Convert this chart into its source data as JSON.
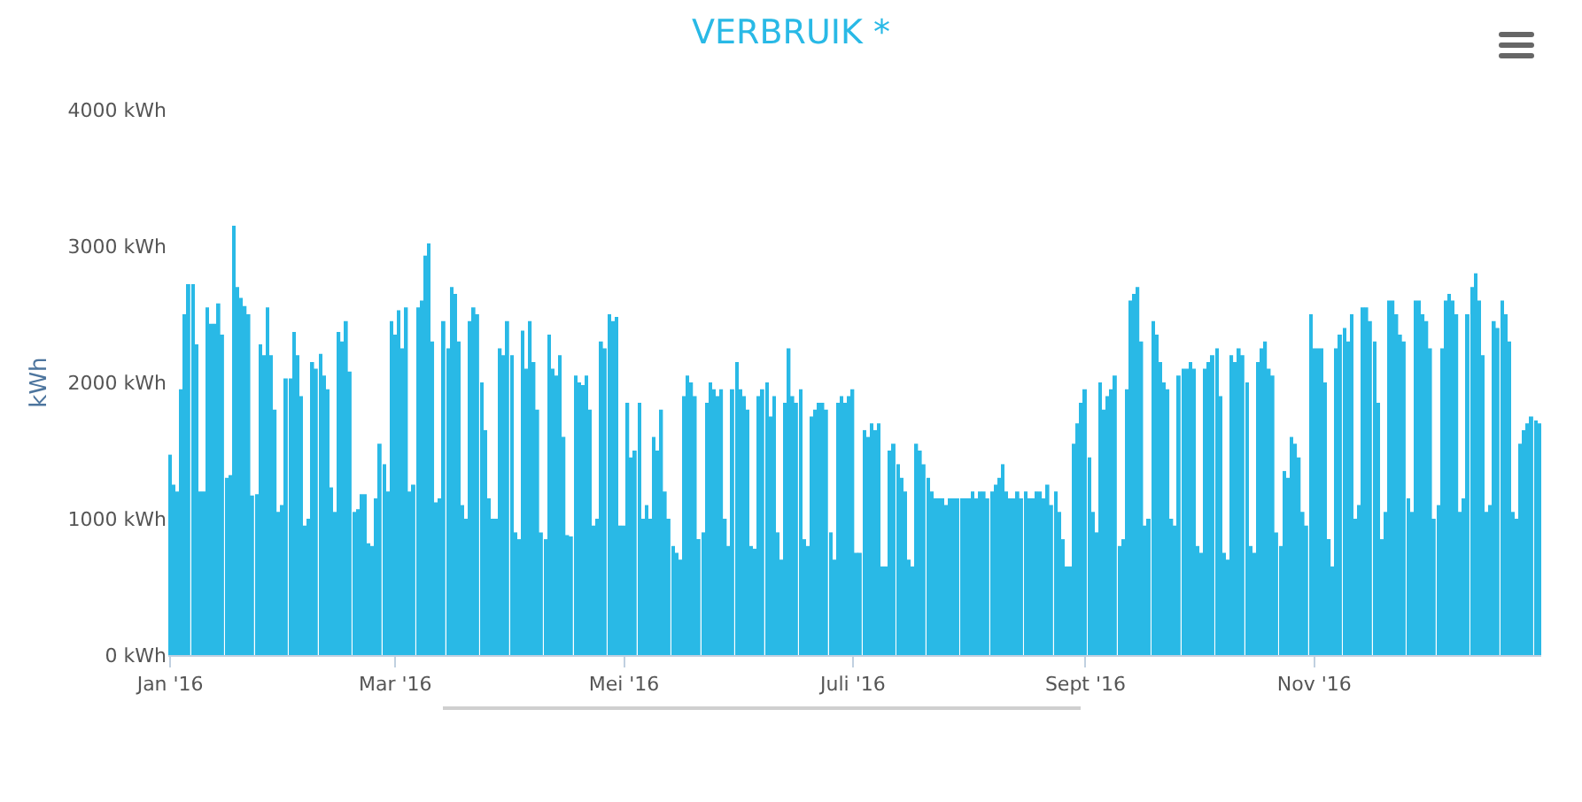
{
  "chart_data": {
    "type": "bar",
    "title": "VERBRUIK *",
    "ylabel": "kWh",
    "x": [
      "2016-01-01",
      "2016-01-02",
      "2016-01-03",
      "2016-01-04",
      "2016-01-05",
      "2016-01-06",
      "2016-01-07",
      "2016-01-08",
      "2016-01-09",
      "2016-01-10",
      "2016-01-11",
      "2016-01-12",
      "2016-01-13",
      "2016-01-14",
      "2016-01-15",
      "2016-01-16",
      "2016-01-17",
      "2016-01-18",
      "2016-01-19",
      "2016-01-20",
      "2016-01-21",
      "2016-01-22",
      "2016-01-23",
      "2016-01-24",
      "2016-01-25",
      "2016-01-26",
      "2016-01-27",
      "2016-01-28",
      "2016-01-29",
      "2016-01-30",
      "2016-01-31",
      "2016-02-01",
      "2016-02-02",
      "2016-02-03",
      "2016-02-04",
      "2016-02-05",
      "2016-02-06",
      "2016-02-07",
      "2016-02-08",
      "2016-02-09",
      "2016-02-10",
      "2016-02-11",
      "2016-02-12",
      "2016-02-13",
      "2016-02-14",
      "2016-02-15",
      "2016-02-16",
      "2016-02-17",
      "2016-02-18",
      "2016-02-19",
      "2016-02-20",
      "2016-02-21",
      "2016-02-22",
      "2016-02-23",
      "2016-02-24",
      "2016-02-25",
      "2016-02-26",
      "2016-02-27",
      "2016-02-28",
      "2016-02-29",
      "2016-03-01",
      "2016-03-02",
      "2016-03-03",
      "2016-03-04",
      "2016-03-05",
      "2016-03-06",
      "2016-03-07",
      "2016-03-08",
      "2016-03-09",
      "2016-03-10",
      "2016-03-11",
      "2016-03-12",
      "2016-03-13",
      "2016-03-14",
      "2016-03-15",
      "2016-03-16",
      "2016-03-17",
      "2016-03-18",
      "2016-03-19",
      "2016-03-20",
      "2016-03-21",
      "2016-03-22",
      "2016-03-23",
      "2016-03-24",
      "2016-03-25",
      "2016-03-26",
      "2016-03-27",
      "2016-03-28",
      "2016-03-29",
      "2016-03-30",
      "2016-03-31",
      "2016-04-01",
      "2016-04-02",
      "2016-04-03",
      "2016-04-04",
      "2016-04-05",
      "2016-04-06",
      "2016-04-07",
      "2016-04-08",
      "2016-04-09",
      "2016-04-10",
      "2016-04-11",
      "2016-04-12",
      "2016-04-13",
      "2016-04-14",
      "2016-04-15",
      "2016-04-16",
      "2016-04-17",
      "2016-04-18",
      "2016-04-19",
      "2016-04-20",
      "2016-04-21",
      "2016-04-22",
      "2016-04-23",
      "2016-04-24",
      "2016-04-25",
      "2016-04-26",
      "2016-04-27",
      "2016-04-28",
      "2016-04-29",
      "2016-04-30",
      "2016-05-01",
      "2016-05-02",
      "2016-05-03",
      "2016-05-04",
      "2016-05-05",
      "2016-05-06",
      "2016-05-07",
      "2016-05-08",
      "2016-05-09",
      "2016-05-10",
      "2016-05-11",
      "2016-05-12",
      "2016-05-13",
      "2016-05-14",
      "2016-05-15",
      "2016-05-16",
      "2016-05-17",
      "2016-05-18",
      "2016-05-19",
      "2016-05-20",
      "2016-05-21",
      "2016-05-22",
      "2016-05-23",
      "2016-05-24",
      "2016-05-25",
      "2016-05-26",
      "2016-05-27",
      "2016-05-28",
      "2016-05-29",
      "2016-05-30",
      "2016-05-31",
      "2016-06-01",
      "2016-06-02",
      "2016-06-03",
      "2016-06-04",
      "2016-06-05",
      "2016-06-06",
      "2016-06-07",
      "2016-06-08",
      "2016-06-09",
      "2016-06-10",
      "2016-06-11",
      "2016-06-12",
      "2016-06-13",
      "2016-06-14",
      "2016-06-15",
      "2016-06-16",
      "2016-06-17",
      "2016-06-18",
      "2016-06-19",
      "2016-06-20",
      "2016-06-21",
      "2016-06-22",
      "2016-06-23",
      "2016-06-24",
      "2016-06-25",
      "2016-06-26",
      "2016-06-27",
      "2016-06-28",
      "2016-06-29",
      "2016-06-30",
      "2016-07-01",
      "2016-07-02",
      "2016-07-03",
      "2016-07-04",
      "2016-07-05",
      "2016-07-06",
      "2016-07-07",
      "2016-07-08",
      "2016-07-09",
      "2016-07-10",
      "2016-07-11",
      "2016-07-12",
      "2016-07-13",
      "2016-07-14",
      "2016-07-15",
      "2016-07-16",
      "2016-07-17",
      "2016-07-18",
      "2016-07-19",
      "2016-07-20",
      "2016-07-21",
      "2016-07-22",
      "2016-07-23",
      "2016-07-24",
      "2016-07-25",
      "2016-07-26",
      "2016-07-27",
      "2016-07-28",
      "2016-07-29",
      "2016-07-30",
      "2016-07-31",
      "2016-08-01",
      "2016-08-02",
      "2016-08-03",
      "2016-08-04",
      "2016-08-05",
      "2016-08-06",
      "2016-08-07",
      "2016-08-08",
      "2016-08-09",
      "2016-08-10",
      "2016-08-11",
      "2016-08-12",
      "2016-08-13",
      "2016-08-14",
      "2016-08-15",
      "2016-08-16",
      "2016-08-17",
      "2016-08-18",
      "2016-08-19",
      "2016-08-20",
      "2016-08-21",
      "2016-08-22",
      "2016-08-23",
      "2016-08-24",
      "2016-08-25",
      "2016-08-26",
      "2016-08-27",
      "2016-08-28",
      "2016-08-29",
      "2016-08-30",
      "2016-08-31",
      "2016-09-01",
      "2016-09-02",
      "2016-09-03",
      "2016-09-04",
      "2016-09-05",
      "2016-09-06",
      "2016-09-07",
      "2016-09-08",
      "2016-09-09",
      "2016-09-10",
      "2016-09-11",
      "2016-09-12",
      "2016-09-13",
      "2016-09-14",
      "2016-09-15",
      "2016-09-16",
      "2016-09-17",
      "2016-09-18",
      "2016-09-19",
      "2016-09-20",
      "2016-09-21",
      "2016-09-22",
      "2016-09-23",
      "2016-09-24",
      "2016-09-25",
      "2016-09-26",
      "2016-09-27",
      "2016-09-28",
      "2016-09-29",
      "2016-09-30",
      "2016-10-01",
      "2016-10-02",
      "2016-10-03",
      "2016-10-04",
      "2016-10-05",
      "2016-10-06",
      "2016-10-07",
      "2016-10-08",
      "2016-10-09",
      "2016-10-10",
      "2016-10-11",
      "2016-10-12",
      "2016-10-13",
      "2016-10-14",
      "2016-10-15",
      "2016-10-16",
      "2016-10-17",
      "2016-10-18",
      "2016-10-19",
      "2016-10-20",
      "2016-10-21",
      "2016-10-22",
      "2016-10-23",
      "2016-10-24",
      "2016-10-25",
      "2016-10-26",
      "2016-10-27",
      "2016-10-28",
      "2016-10-29",
      "2016-10-30",
      "2016-10-31",
      "2016-11-01",
      "2016-11-02",
      "2016-11-03",
      "2016-11-04",
      "2016-11-05",
      "2016-11-06",
      "2016-11-07",
      "2016-11-08",
      "2016-11-09",
      "2016-11-10",
      "2016-11-11",
      "2016-11-12",
      "2016-11-13",
      "2016-11-14",
      "2016-11-15",
      "2016-11-16",
      "2016-11-17",
      "2016-11-18",
      "2016-11-19",
      "2016-11-20",
      "2016-11-21",
      "2016-11-22",
      "2016-11-23",
      "2016-11-24",
      "2016-11-25",
      "2016-11-26",
      "2016-11-27",
      "2016-11-28",
      "2016-11-29",
      "2016-11-30",
      "2016-12-01",
      "2016-12-02",
      "2016-12-03",
      "2016-12-04",
      "2016-12-05",
      "2016-12-06",
      "2016-12-07",
      "2016-12-08",
      "2016-12-09",
      "2016-12-10",
      "2016-12-11",
      "2016-12-12",
      "2016-12-13",
      "2016-12-14",
      "2016-12-15",
      "2016-12-16",
      "2016-12-17",
      "2016-12-18",
      "2016-12-19",
      "2016-12-20",
      "2016-12-21",
      "2016-12-22",
      "2016-12-23",
      "2016-12-24",
      "2016-12-25",
      "2016-12-26",
      "2016-12-27",
      "2016-12-28",
      "2016-12-29",
      "2016-12-30",
      "2016-12-31"
    ],
    "series": [
      {
        "color": "#29b9e6",
        "values": [
          1470,
          1250,
          1200,
          1950,
          2500,
          2720,
          2720,
          2280,
          1200,
          1200,
          2550,
          2430,
          2430,
          2580,
          2350,
          1300,
          1320,
          3150,
          2700,
          2620,
          2560,
          2500,
          1170,
          1180,
          2280,
          2200,
          2550,
          2200,
          1800,
          1050,
          1100,
          2030,
          2030,
          2370,
          2200,
          1900,
          950,
          1000,
          2150,
          2100,
          2210,
          2050,
          1950,
          1230,
          1050,
          2370,
          2300,
          2450,
          2080,
          1050,
          1070,
          1180,
          1180,
          820,
          800,
          1150,
          1550,
          1400,
          1200,
          2450,
          2350,
          2530,
          2250,
          2550,
          1200,
          1250,
          2550,
          2600,
          2930,
          3020,
          2300,
          1120,
          1150,
          2450,
          2250,
          2700,
          2650,
          2300,
          1100,
          1000,
          2450,
          2550,
          2500,
          2000,
          1650,
          1150,
          1000,
          1000,
          2250,
          2200,
          2450,
          2200,
          900,
          850,
          2380,
          2100,
          2450,
          2150,
          1800,
          900,
          850,
          2350,
          2100,
          2050,
          2200,
          1600,
          880,
          870,
          2050,
          2000,
          1980,
          2050,
          1800,
          950,
          1000,
          2300,
          2250,
          2500,
          2450,
          2480,
          950,
          950,
          1850,
          1450,
          1500,
          1850,
          1000,
          1100,
          1000,
          1600,
          1500,
          1800,
          1200,
          1000,
          800,
          750,
          700,
          1900,
          2050,
          2000,
          1900,
          850,
          900,
          1850,
          2000,
          1950,
          1900,
          1950,
          1000,
          800,
          1950,
          2150,
          1950,
          1900,
          1800,
          800,
          780,
          1900,
          1950,
          2000,
          1750,
          1900,
          900,
          700,
          1850,
          2250,
          1900,
          1850,
          1950,
          850,
          800,
          1750,
          1800,
          1850,
          1850,
          1800,
          900,
          700,
          1850,
          1900,
          1850,
          1900,
          1950,
          750,
          750,
          1650,
          1600,
          1700,
          1650,
          1700,
          650,
          650,
          1500,
          1550,
          1400,
          1300,
          1200,
          700,
          650,
          1550,
          1500,
          1400,
          1300,
          1200,
          1150,
          1150,
          1150,
          1100,
          1150,
          1150,
          1150,
          1150,
          1150,
          1150,
          1200,
          1150,
          1200,
          1200,
          1150,
          1200,
          1250,
          1300,
          1400,
          1200,
          1150,
          1150,
          1200,
          1150,
          1200,
          1150,
          1150,
          1200,
          1200,
          1150,
          1250,
          1100,
          1200,
          1050,
          850,
          650,
          650,
          1550,
          1700,
          1850,
          1950,
          1450,
          1050,
          900,
          2000,
          1800,
          1900,
          1950,
          2050,
          800,
          850,
          1950,
          2600,
          2650,
          2700,
          2300,
          950,
          1000,
          2450,
          2350,
          2150,
          2000,
          1950,
          1000,
          950,
          2050,
          2100,
          2100,
          2150,
          2100,
          800,
          750,
          2100,
          2150,
          2200,
          2250,
          1900,
          750,
          700,
          2200,
          2150,
          2250,
          2200,
          2000,
          800,
          750,
          2150,
          2250,
          2300,
          2100,
          2050,
          900,
          800,
          1350,
          1300,
          1600,
          1550,
          1450,
          1050,
          950,
          2500,
          2250,
          2250,
          2250,
          2000,
          850,
          650,
          2250,
          2350,
          2400,
          2300,
          2500,
          1000,
          1100,
          2550,
          2550,
          2450,
          2300,
          1850,
          850,
          1050,
          2600,
          2600,
          2500,
          2350,
          2300,
          1150,
          1050,
          2600,
          2600,
          2500,
          2450,
          2250,
          1000,
          1100,
          2250,
          2600,
          2650,
          2600,
          2500,
          1050,
          1150,
          2500,
          2700,
          2800,
          2600,
          2200,
          1050,
          1100,
          2450,
          2400,
          2600,
          2500,
          2300,
          1050,
          1000,
          1550,
          1650,
          1700,
          1750,
          1720,
          1700
        ]
      }
    ],
    "xlim": [
      "2015-12-31T12:00",
      "2016-12-31T12:00"
    ],
    "xticks": [
      {
        "value": "2016-01-01",
        "label": "Jan '16"
      },
      {
        "value": "2016-03-01",
        "label": "Mar '16"
      },
      {
        "value": "2016-05-01",
        "label": "Mei '16"
      },
      {
        "value": "2016-07-01",
        "label": "Juli '16"
      },
      {
        "value": "2016-09-01",
        "label": "Sept '16"
      },
      {
        "value": "2016-11-01",
        "label": "Nov '16"
      }
    ],
    "ylim": [
      0,
      4000
    ],
    "yticks": [
      {
        "value": 0,
        "label": "0 kWh"
      },
      {
        "value": 1000,
        "label": "1000 kWh"
      },
      {
        "value": 2000,
        "label": "2000 kWh"
      },
      {
        "value": 3000,
        "label": "3000 kWh"
      },
      {
        "value": 4000,
        "label": "4000 kWh"
      }
    ],
    "grid": false
  }
}
